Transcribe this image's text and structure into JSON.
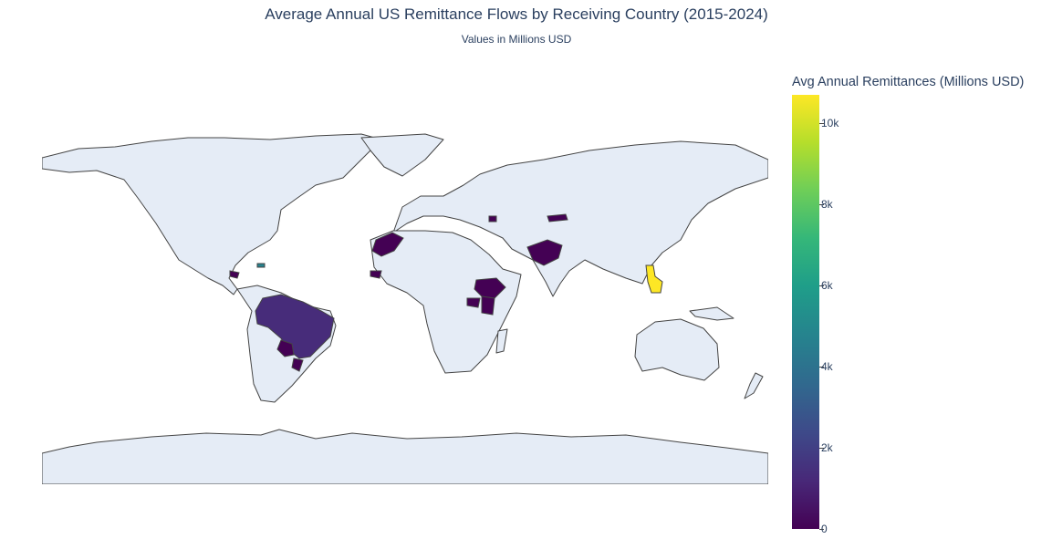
{
  "title": "Average Annual US Remittance Flows by Receiving Country (2015-2024)",
  "subtitle": "Values in Millions USD",
  "colorbar": {
    "title": "Avg Annual Remittances (Millions USD)",
    "colorscale": "Viridis",
    "range": [
      0,
      10700
    ],
    "ticks": [
      {
        "value": 0,
        "label": "0"
      },
      {
        "value": 2000,
        "label": "2k"
      },
      {
        "value": 4000,
        "label": "4k"
      },
      {
        "value": 6000,
        "label": "6k"
      },
      {
        "value": 8000,
        "label": "8k"
      },
      {
        "value": 10000,
        "label": "10k"
      }
    ]
  },
  "map": {
    "projection": "equirectangular",
    "land_color": "#e5ecf6",
    "border_color": "#444444",
    "highlighted_countries": [
      {
        "country": "Philippines",
        "color": "#fde725"
      },
      {
        "country": "Haiti",
        "color": "#26828e"
      },
      {
        "country": "Brazil",
        "color": "#472c7a"
      },
      {
        "country": "Paraguay",
        "color": "#440154"
      },
      {
        "country": "Uruguay",
        "color": "#440154"
      },
      {
        "country": "Honduras",
        "color": "#440154"
      },
      {
        "country": "Morocco",
        "color": "#440154"
      },
      {
        "country": "Senegal",
        "color": "#440154"
      },
      {
        "country": "Ethiopia",
        "color": "#440154"
      },
      {
        "country": "Kenya",
        "color": "#440154"
      },
      {
        "country": "Uganda",
        "color": "#440154"
      },
      {
        "country": "Pakistan",
        "color": "#440154"
      },
      {
        "country": "Kyrgyzstan",
        "color": "#440154"
      },
      {
        "country": "Armenia",
        "color": "#440154"
      }
    ]
  }
}
